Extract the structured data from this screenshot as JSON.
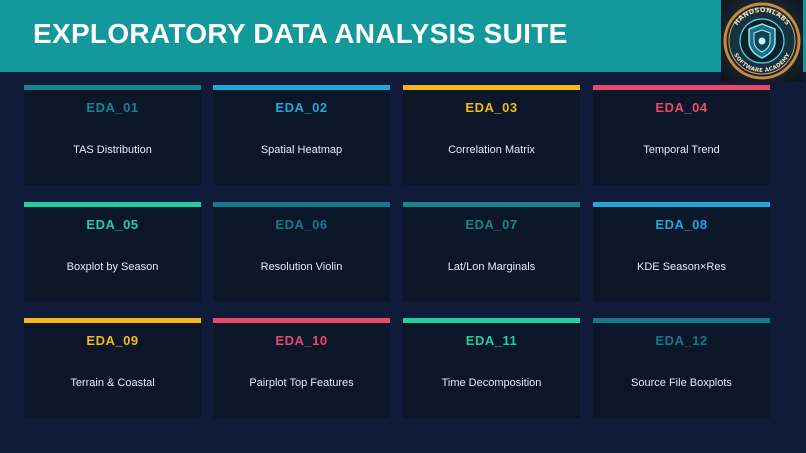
{
  "header": {
    "title": "EXPLORATORY DATA ANALYSIS SUITE",
    "logo_text_top": "HANDSONLABS",
    "logo_text_bottom": "SOFTWARE ACADEMY"
  },
  "colors": {
    "header_bg": "#13989c",
    "page_bg": "#101b3a",
    "card_bg": "#0c1629",
    "teal_dark": "#16868e",
    "blue": "#1fa8d8",
    "yellow": "#f5b818",
    "pink": "#e84a6c",
    "green": "#1fcfa0",
    "slate_teal": "#127a8c"
  },
  "cards": [
    {
      "code": "EDA_01",
      "label": "TAS Distribution",
      "color": "#16868e"
    },
    {
      "code": "EDA_02",
      "label": "Spatial Heatmap",
      "color": "#1fa8d8"
    },
    {
      "code": "EDA_03",
      "label": "Correlation Matrix",
      "color": "#f5b818"
    },
    {
      "code": "EDA_04",
      "label": "Temporal Trend",
      "color": "#e84a6c"
    },
    {
      "code": "EDA_05",
      "label": "Boxplot by Season",
      "color": "#1fcfa0"
    },
    {
      "code": "EDA_06",
      "label": "Resolution Violin",
      "color": "#127a8c"
    },
    {
      "code": "EDA_07",
      "label": "Lat/Lon Marginals",
      "color": "#16868e"
    },
    {
      "code": "EDA_08",
      "label": "KDE Season×Res",
      "color": "#1fa8d8"
    },
    {
      "code": "EDA_09",
      "label": "Terrain & Coastal",
      "color": "#f5b818"
    },
    {
      "code": "EDA_10",
      "label": "Pairplot Top Features",
      "color": "#e84a6c"
    },
    {
      "code": "EDA_11",
      "label": "Time Decomposition",
      "color": "#1fcfa0"
    },
    {
      "code": "EDA_12",
      "label": "Source File Boxplots",
      "color": "#127a8c"
    }
  ]
}
